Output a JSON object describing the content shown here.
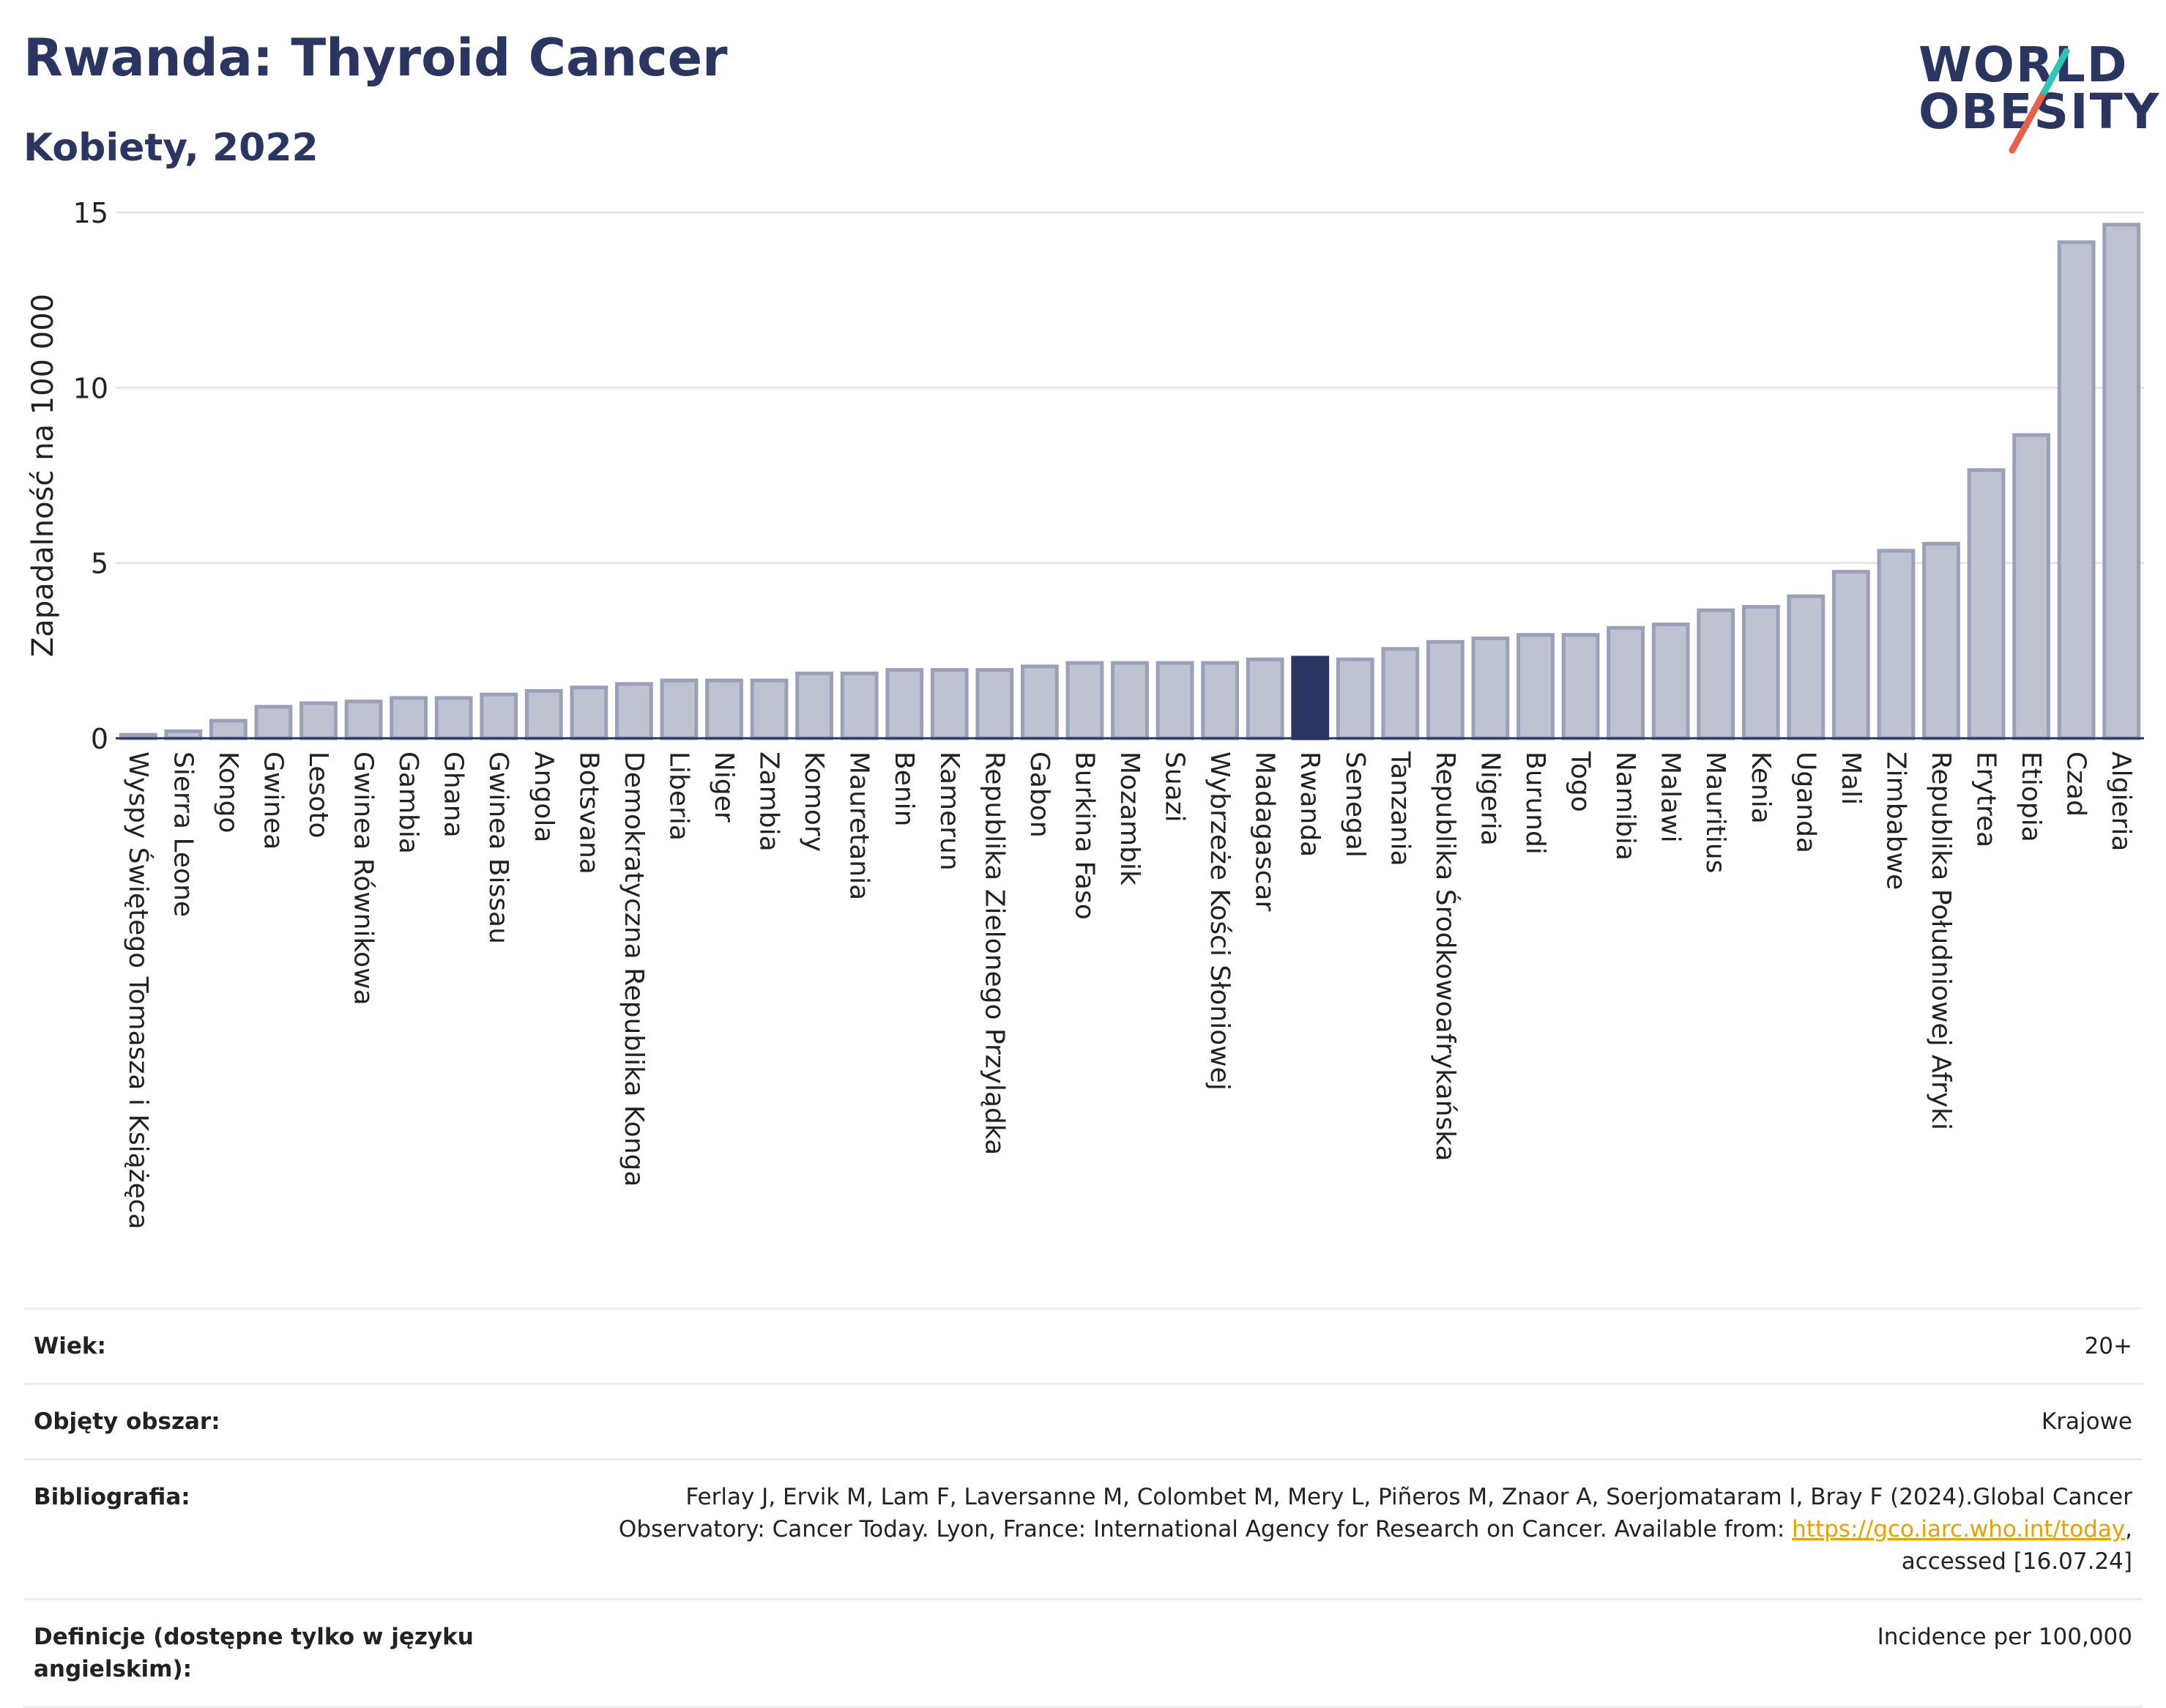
{
  "header": {
    "title": "Rwanda: Thyroid Cancer",
    "subtitle": "Kobiety, 2022"
  },
  "logo": {
    "line1": "WORLD",
    "line2": "OBESITY"
  },
  "colors": {
    "highlight": "#2b3561",
    "bar_fill": "#bfc3d1",
    "bar_stroke": "#9aa0b8",
    "logo_teal": "#2ec4b6",
    "logo_red": "#e8604c",
    "link": "#e8a200"
  },
  "chart_data": {
    "type": "bar",
    "ylabel": "Zapadalność na 100 000",
    "ylim": [
      0,
      15
    ],
    "yticks": [
      0,
      5,
      10,
      15
    ],
    "highlight": "Rwanda",
    "grid": true,
    "categories": [
      "Wyspy Świętego Tomasza i Książęca",
      "Sierra Leone",
      "Kongo",
      "Gwinea",
      "Lesoto",
      "Gwinea Równikowa",
      "Gambia",
      "Ghana",
      "Gwinea Bissau",
      "Angola",
      "Botsvana",
      "Demokratyczna Republika Konga",
      "Liberia",
      "Niger",
      "Zambia",
      "Komory",
      "Mauretania",
      "Benin",
      "Kamerun",
      "Republika Zielonego Przylądka",
      "Gabon",
      "Burkina Faso",
      "Mozambik",
      "Suazi",
      "Wybrzeże Kości Słoniowej",
      "Madagascar",
      "Rwanda",
      "Senegal",
      "Tanzania",
      "Republika Środkowoafrykańska",
      "Nigeria",
      "Burundi",
      "Togo",
      "Namibia",
      "Malawi",
      "Mauritius",
      "Kenia",
      "Uganda",
      "Mali",
      "Zimbabwe",
      "Republika Południowej Afryki",
      "Erytrea",
      "Etiopia",
      "Czad",
      "Algieria"
    ],
    "values": [
      0.1,
      0.2,
      0.5,
      0.9,
      1.0,
      1.05,
      1.15,
      1.15,
      1.25,
      1.35,
      1.45,
      1.55,
      1.65,
      1.65,
      1.65,
      1.85,
      1.85,
      1.95,
      1.95,
      1.95,
      2.05,
      2.15,
      2.15,
      2.15,
      2.15,
      2.25,
      2.3,
      2.25,
      2.55,
      2.75,
      2.85,
      2.95,
      2.95,
      3.15,
      3.25,
      3.65,
      3.75,
      4.05,
      4.75,
      5.35,
      5.55,
      7.65,
      8.65,
      14.15,
      14.65
    ]
  },
  "meta": [
    {
      "label": "Wiek:",
      "value": "20+"
    },
    {
      "label": "Objęty obszar:",
      "value": "Krajowe"
    },
    {
      "label": "Bibliografia:",
      "value": "Ferlay J, Ervik M, Lam F, Laversanne M, Colombet M, Mery L, Piñeros M, Znaor A, Soerjomataram I, Bray F (2024).Global Cancer Observatory: Cancer Today. Lyon, France: International Agency for Research on Cancer. Available from: ",
      "link": "https://gco.iarc.who.int/today",
      "suffix": ", accessed [16.07.24]"
    },
    {
      "label": "Definicje (dostępne tylko w języku angielskim):",
      "value": "Incidence per 100,000"
    }
  ]
}
